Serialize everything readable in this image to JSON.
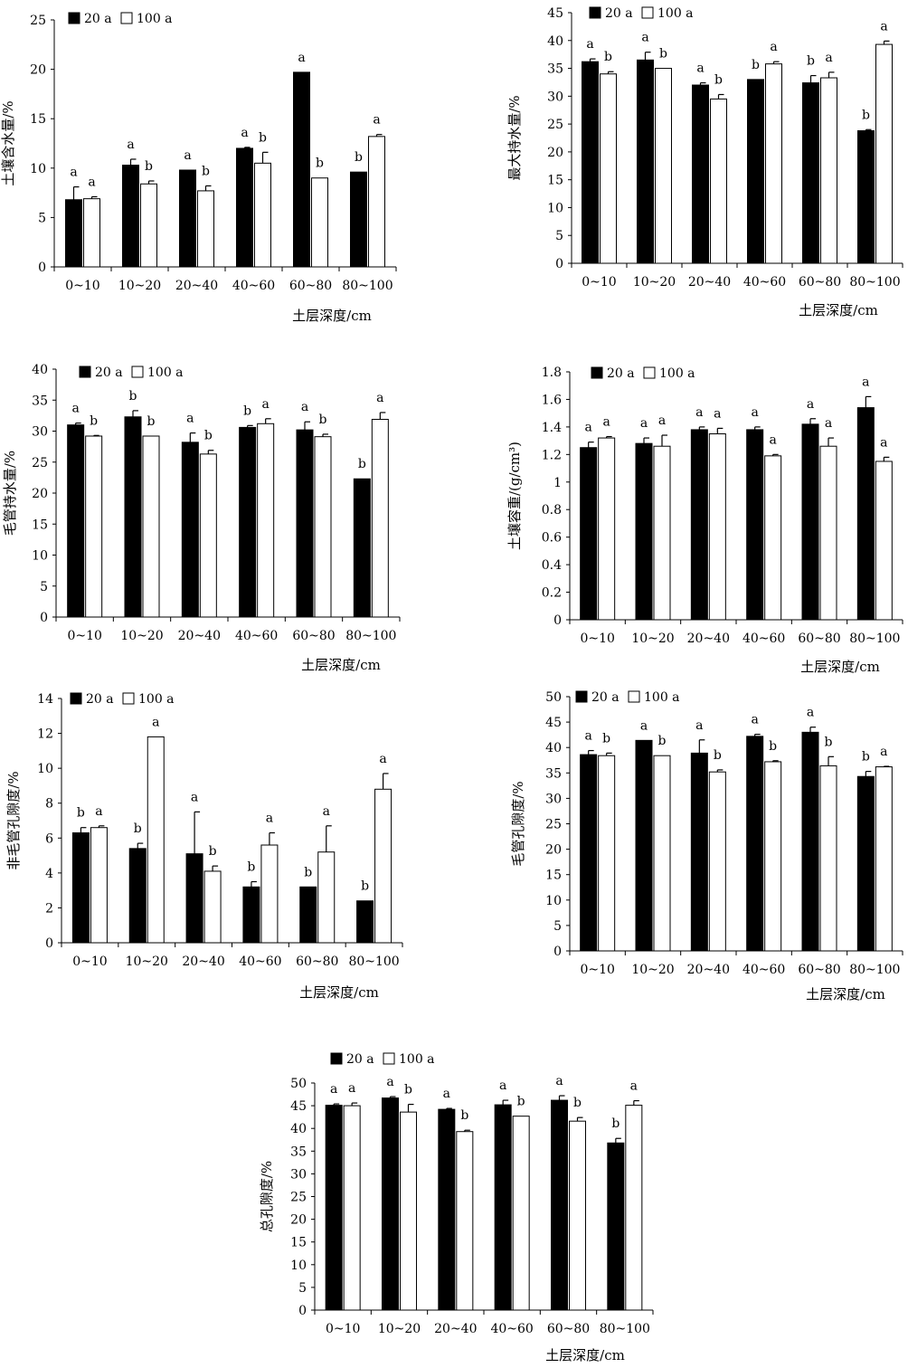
{
  "chart_data": [
    {
      "type": "bar",
      "title": "",
      "xlabel": "土层深度/cm",
      "ylabel": "土壤含水量/%",
      "ylim": [
        0,
        25
      ],
      "yticks": [
        0,
        5,
        10,
        15,
        20,
        25
      ],
      "categories": [
        "0~10",
        "10~20",
        "20~40",
        "40~60",
        "60~80",
        "80~100"
      ],
      "legend_position": "top-left",
      "grid": false,
      "series": [
        {
          "name": "20 a",
          "color": "#000000",
          "values": [
            6.8,
            10.3,
            9.8,
            12.0,
            19.7,
            9.6
          ],
          "errors": [
            1.3,
            0.6,
            0,
            0.1,
            0,
            0
          ],
          "letters": [
            "a",
            "a",
            "a",
            "a",
            "a",
            "b"
          ]
        },
        {
          "name": "100 a",
          "color": "#ffffff",
          "values": [
            6.9,
            8.4,
            7.7,
            10.5,
            9.0,
            13.2
          ],
          "errors": [
            0.2,
            0.3,
            0.5,
            1.1,
            0,
            0.2
          ],
          "letters": [
            "a",
            "b",
            "b",
            "b",
            "b",
            "a"
          ]
        }
      ]
    },
    {
      "type": "bar",
      "title": "",
      "xlabel": "土层深度/cm",
      "ylabel": "最大持水量/%",
      "ylim": [
        0,
        45
      ],
      "yticks": [
        0,
        5,
        10,
        15,
        20,
        25,
        30,
        35,
        40,
        45
      ],
      "categories": [
        "0~10",
        "10~20",
        "20~40",
        "40~60",
        "60~80",
        "80~100"
      ],
      "legend_position": "top-left",
      "grid": false,
      "series": [
        {
          "name": "20 a",
          "color": "#000000",
          "values": [
            36.2,
            36.5,
            32.0,
            33.0,
            32.4,
            23.8
          ],
          "errors": [
            0.5,
            1.4,
            0.4,
            0,
            1.3,
            0.2
          ],
          "letters": [
            "a",
            "a",
            "a",
            "b",
            "b",
            "b"
          ]
        },
        {
          "name": "100 a",
          "color": "#ffffff",
          "values": [
            34.0,
            35.0,
            29.5,
            35.8,
            33.3,
            39.3
          ],
          "errors": [
            0.4,
            0,
            0.8,
            0.4,
            1.0,
            0.6
          ],
          "letters": [
            "b",
            "b",
            "b",
            "a",
            "a",
            "a"
          ]
        }
      ]
    },
    {
      "type": "bar",
      "title": "",
      "xlabel": "土层深度/cm",
      "ylabel": "毛管持水量/%",
      "ylim": [
        0,
        40
      ],
      "yticks": [
        0,
        5,
        10,
        15,
        20,
        25,
        30,
        35,
        40
      ],
      "categories": [
        "0~10",
        "10~20",
        "20~40",
        "40~60",
        "60~80",
        "80~100"
      ],
      "legend_position": "top-left",
      "grid": false,
      "series": [
        {
          "name": "20 a",
          "color": "#000000",
          "values": [
            31.0,
            32.3,
            28.2,
            30.6,
            30.2,
            22.3
          ],
          "errors": [
            0.3,
            1.0,
            1.5,
            0.3,
            1.3,
            0
          ],
          "letters": [
            "a",
            "b",
            "a",
            "b",
            "a",
            "b"
          ]
        },
        {
          "name": "100 a",
          "color": "#ffffff",
          "values": [
            29.2,
            29.2,
            26.3,
            31.2,
            29.1,
            31.9
          ],
          "errors": [
            0.1,
            0,
            0.6,
            0.8,
            0.4,
            1.1
          ],
          "letters": [
            "b",
            "b",
            "b",
            "a",
            "b",
            "a"
          ]
        }
      ]
    },
    {
      "type": "bar",
      "title": "",
      "xlabel": "土层深度/cm",
      "ylabel": "土壤容重/(g/cm³)",
      "ylim": [
        0,
        1.8
      ],
      "yticks": [
        0,
        0.2,
        0.4,
        0.6,
        0.8,
        1,
        1.2,
        1.4,
        1.6,
        1.8
      ],
      "categories": [
        "0~10",
        "10~20",
        "20~40",
        "40~60",
        "60~80",
        "80~100"
      ],
      "legend_position": "top-left",
      "grid": false,
      "series": [
        {
          "name": "20 a",
          "color": "#000000",
          "values": [
            1.25,
            1.28,
            1.38,
            1.38,
            1.42,
            1.54
          ],
          "errors": [
            0.04,
            0.04,
            0.02,
            0.02,
            0.04,
            0.08
          ],
          "letters": [
            "a",
            "a",
            "a",
            "a",
            "a",
            "a"
          ]
        },
        {
          "name": "100 a",
          "color": "#ffffff",
          "values": [
            1.32,
            1.26,
            1.35,
            1.19,
            1.26,
            1.15
          ],
          "errors": [
            0.01,
            0.08,
            0.04,
            0.01,
            0.06,
            0.03
          ],
          "letters": [
            "a",
            "a",
            "a",
            "a",
            "a",
            "a"
          ]
        }
      ]
    },
    {
      "type": "bar",
      "title": "",
      "xlabel": "土层深度/cm",
      "ylabel": "非毛管孔隙度/%",
      "ylim": [
        0,
        14
      ],
      "yticks": [
        0,
        2,
        4,
        6,
        8,
        10,
        12,
        14
      ],
      "categories": [
        "0~10",
        "10~20",
        "20~40",
        "40~60",
        "60~80",
        "80~100"
      ],
      "legend_position": "top-left",
      "grid": false,
      "series": [
        {
          "name": "20 a",
          "color": "#000000",
          "values": [
            6.3,
            5.4,
            5.1,
            3.2,
            3.2,
            2.4
          ],
          "errors": [
            0.3,
            0.3,
            2.4,
            0.3,
            0,
            0
          ],
          "letters": [
            "b",
            "b",
            "a",
            "b",
            "b",
            "b"
          ]
        },
        {
          "name": "100 a",
          "color": "#ffffff",
          "values": [
            6.6,
            11.8,
            4.1,
            5.6,
            5.2,
            8.8
          ],
          "errors": [
            0.1,
            0,
            0.3,
            0.7,
            1.5,
            0.9
          ],
          "letters": [
            "a",
            "a",
            "b",
            "a",
            "a",
            "a"
          ]
        }
      ]
    },
    {
      "type": "bar",
      "title": "",
      "xlabel": "土层深度/cm",
      "ylabel": "毛管孔隙度/%",
      "ylim": [
        0,
        50
      ],
      "yticks": [
        0,
        5,
        10,
        15,
        20,
        25,
        30,
        35,
        40,
        45,
        50
      ],
      "categories": [
        "0~10",
        "10~20",
        "20~40",
        "40~60",
        "60~80",
        "80~100"
      ],
      "legend_position": "top-left",
      "grid": false,
      "series": [
        {
          "name": "20 a",
          "color": "#000000",
          "values": [
            38.6,
            41.4,
            38.9,
            42.2,
            43.0,
            34.3
          ],
          "errors": [
            0.8,
            0,
            2.6,
            0.4,
            1.0,
            1.0
          ],
          "letters": [
            "a",
            "a",
            "a",
            "a",
            "a",
            "b"
          ]
        },
        {
          "name": "100 a",
          "color": "#ffffff",
          "values": [
            38.4,
            38.4,
            35.2,
            37.2,
            36.4,
            36.2
          ],
          "errors": [
            0.5,
            0,
            0.4,
            0.2,
            1.8,
            0.1
          ],
          "letters": [
            "b",
            "b",
            "b",
            "b",
            "b",
            "a"
          ]
        }
      ]
    },
    {
      "type": "bar",
      "title": "",
      "xlabel": "土层深度/cm",
      "ylabel": "总孔隙度/%",
      "ylim": [
        0,
        50
      ],
      "yticks": [
        0,
        5,
        10,
        15,
        20,
        25,
        30,
        35,
        40,
        45,
        50
      ],
      "categories": [
        "0~10",
        "10~20",
        "20~40",
        "40~60",
        "60~80",
        "80~100"
      ],
      "legend_position": "top-left",
      "grid": false,
      "series": [
        {
          "name": "20 a",
          "color": "#000000",
          "values": [
            45.1,
            46.7,
            44.2,
            45.2,
            46.2,
            36.8
          ],
          "errors": [
            0.3,
            0.3,
            0.2,
            1.0,
            1.0,
            1.0
          ],
          "letters": [
            "a",
            "a",
            "a",
            "a",
            "a",
            "b"
          ]
        },
        {
          "name": "100 a",
          "color": "#ffffff",
          "values": [
            45.0,
            43.6,
            39.3,
            42.7,
            41.6,
            45.1
          ],
          "errors": [
            0.6,
            1.7,
            0.3,
            0,
            0.8,
            1.0
          ],
          "letters": [
            "a",
            "b",
            "b",
            "b",
            "b",
            "a"
          ]
        }
      ]
    }
  ]
}
